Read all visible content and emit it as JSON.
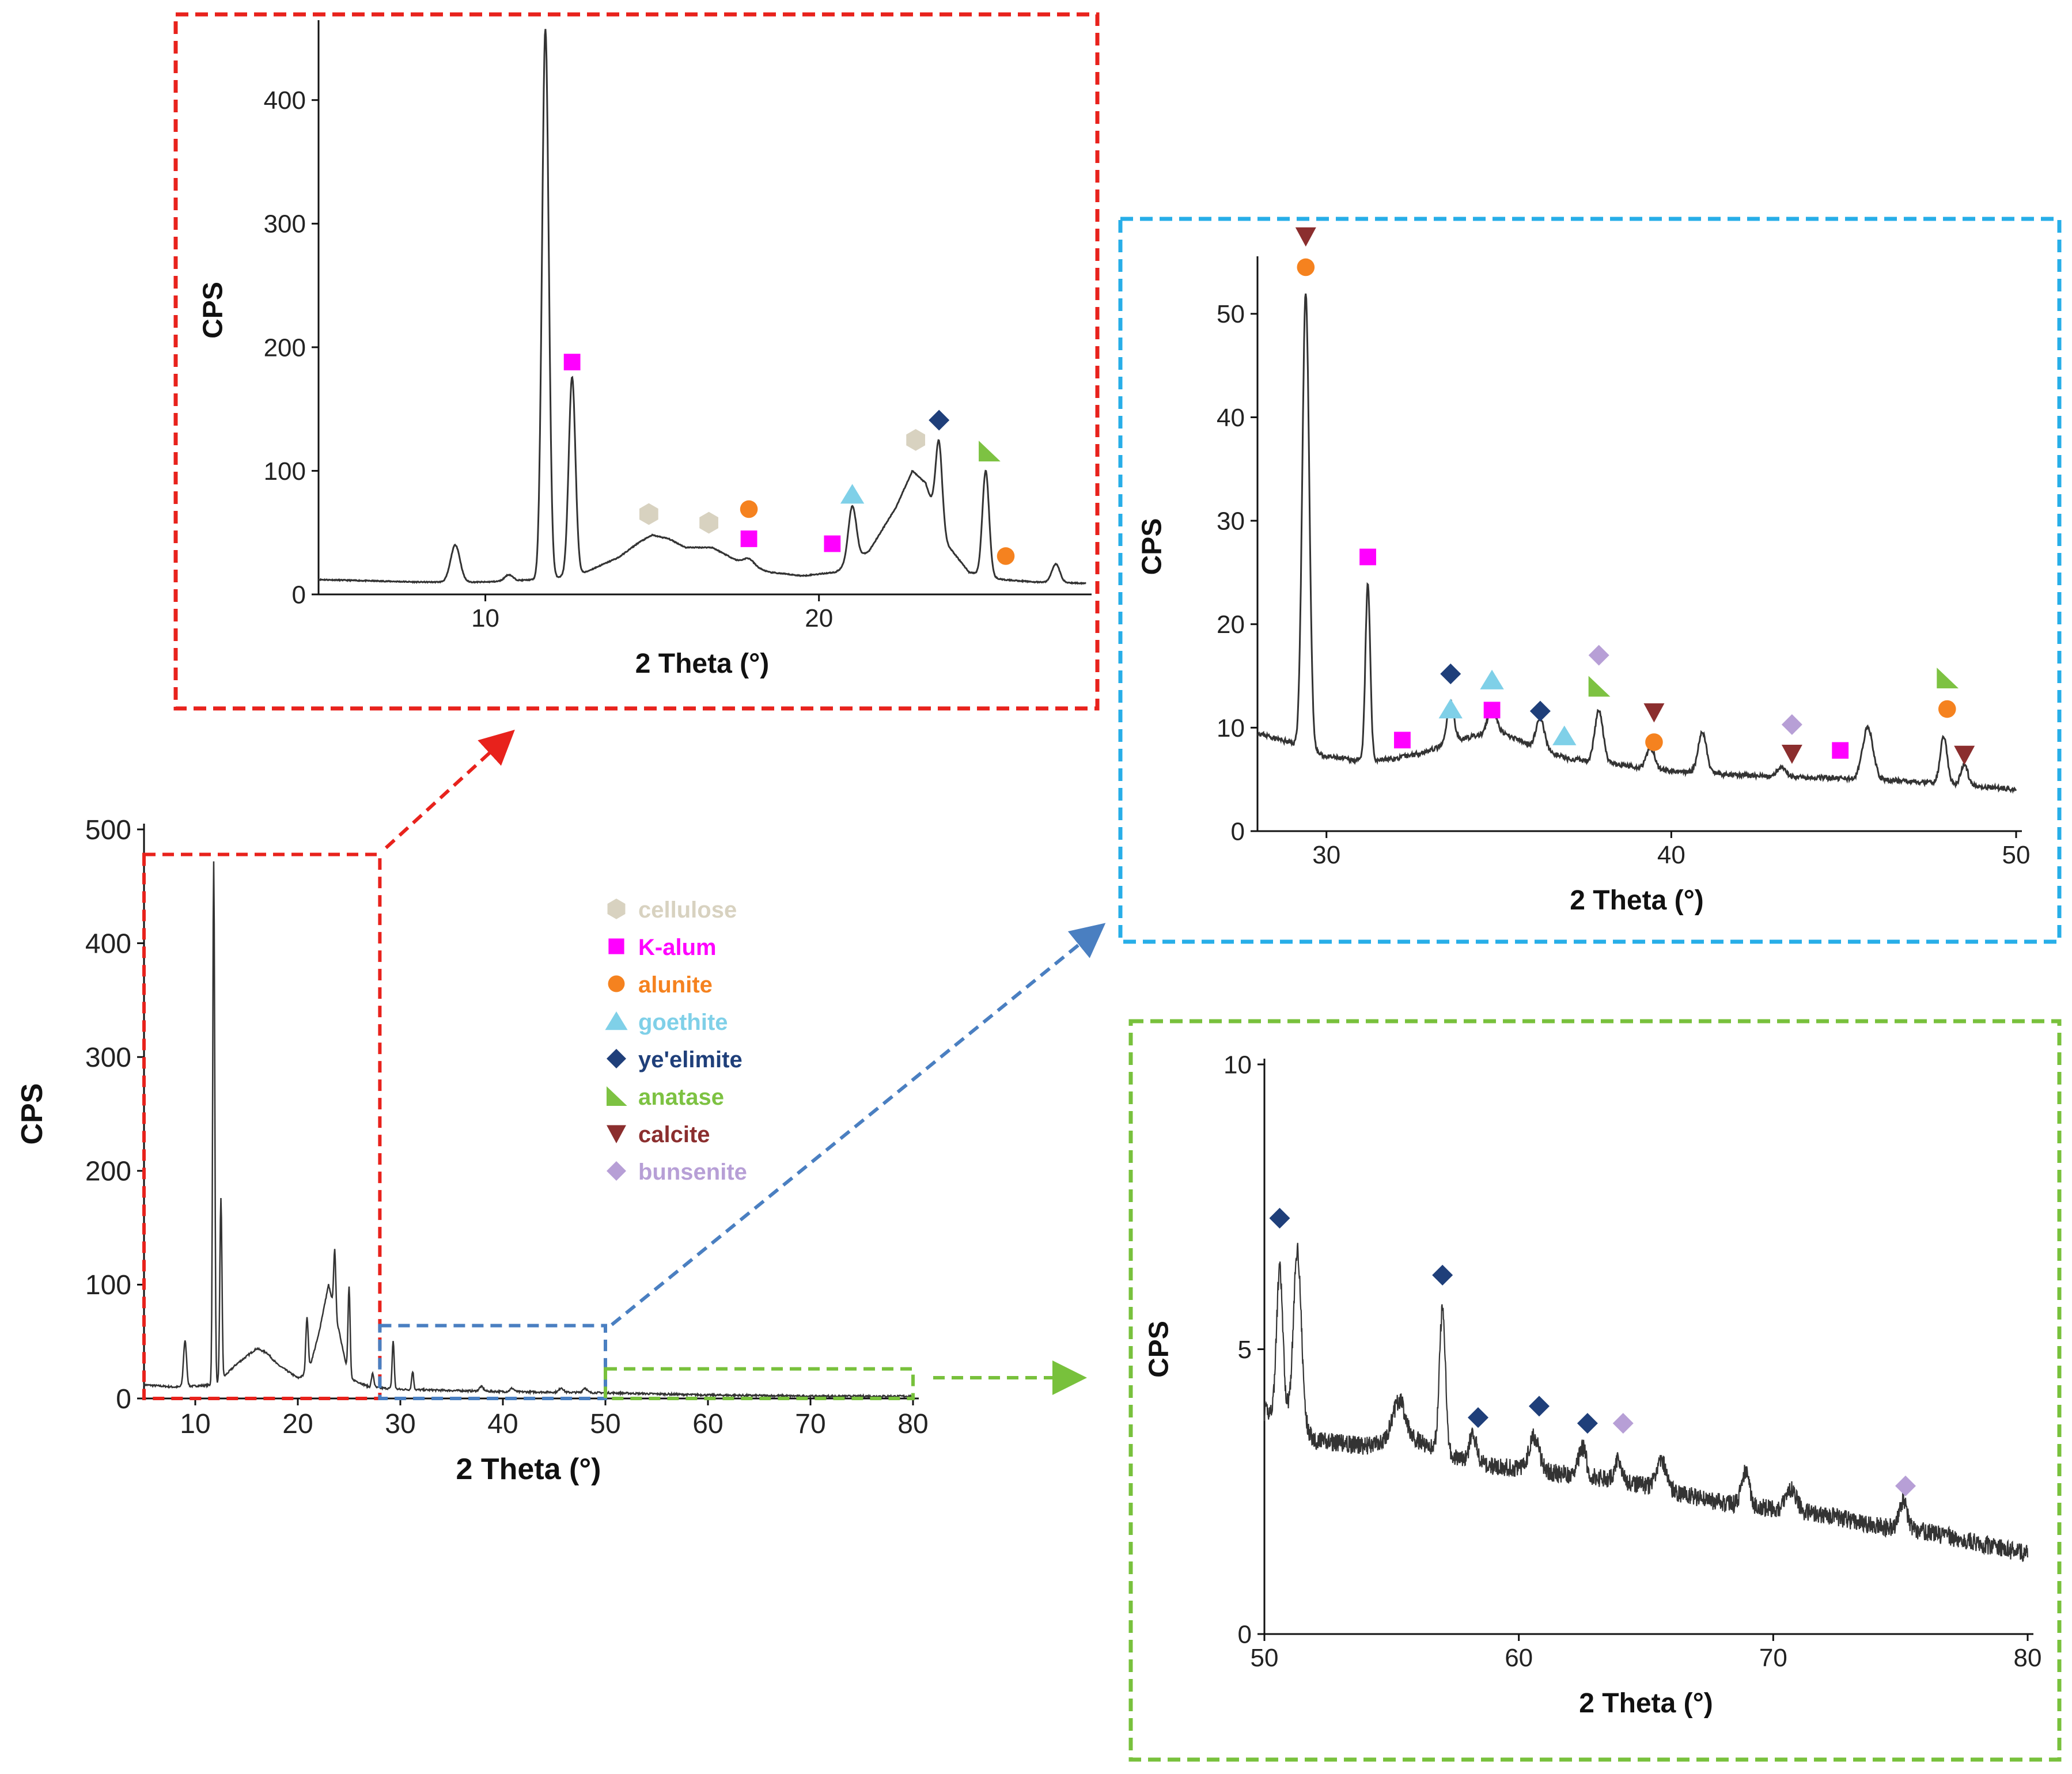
{
  "colors": {
    "cellulose": "#d8d2c0",
    "k_alum": "#ff00ff",
    "alunite": "#f5821f",
    "goethite": "#7fd0e8",
    "yeelimite": "#1f3f7a",
    "anatase": "#7dc242",
    "calcite": "#8b2e2e",
    "bunsenite": "#b79fd6",
    "zoom_red": "#e8221c",
    "zoom_blue": "#27aee8",
    "zoom_green": "#78c13c",
    "zoom_region_blue": "#4a7fc1",
    "trace": "#333333"
  },
  "legend": {
    "entries": [
      {
        "key": "cellulose",
        "label": "cellulose",
        "marker": "hexagon"
      },
      {
        "key": "k_alum",
        "label": "K-alum",
        "marker": "square"
      },
      {
        "key": "alunite",
        "label": "alunite",
        "marker": "circle"
      },
      {
        "key": "goethite",
        "label": "goethite",
        "marker": "triangle-up"
      },
      {
        "key": "yeelimite",
        "label": "ye'elimite",
        "marker": "diamond"
      },
      {
        "key": "anatase",
        "label": "anatase",
        "marker": "right-triangle"
      },
      {
        "key": "calcite",
        "label": "calcite",
        "marker": "triangle-down"
      },
      {
        "key": "bunsenite",
        "label": "bunsenite",
        "marker": "diamond"
      }
    ]
  },
  "chart_data": [
    {
      "id": "main",
      "type": "line",
      "title": "",
      "xlabel": "2 Theta (°)",
      "ylabel": "CPS",
      "xlim": [
        5,
        80
      ],
      "ylim": [
        0,
        500
      ],
      "xticks": [
        10,
        20,
        30,
        40,
        50,
        60,
        70,
        80
      ],
      "yticks": [
        0,
        100,
        200,
        300,
        400,
        500
      ],
      "baseline": [
        [
          5,
          12
        ],
        [
          8,
          10
        ],
        [
          12,
          12
        ],
        [
          14,
          30
        ],
        [
          16,
          44
        ],
        [
          17,
          40
        ],
        [
          18,
          30
        ],
        [
          20,
          18
        ],
        [
          21,
          22
        ],
        [
          22,
          55
        ],
        [
          23,
          100
        ],
        [
          24,
          60
        ],
        [
          25,
          18
        ],
        [
          27,
          10
        ],
        [
          30,
          8
        ],
        [
          35,
          7
        ],
        [
          40,
          6
        ],
        [
          50,
          5
        ],
        [
          60,
          3
        ],
        [
          70,
          2
        ],
        [
          80,
          2
        ]
      ],
      "peaks": [
        [
          9.0,
          40,
          0.15
        ],
        [
          11.8,
          460,
          0.1
        ],
        [
          12.5,
          160,
          0.1
        ],
        [
          20.9,
          50,
          0.12
        ],
        [
          23.6,
          55,
          0.1
        ],
        [
          25.0,
          80,
          0.1
        ],
        [
          27.3,
          12,
          0.12
        ],
        [
          29.3,
          42,
          0.1
        ],
        [
          31.2,
          16,
          0.1
        ],
        [
          37.9,
          4,
          0.2
        ],
        [
          40.9,
          3,
          0.2
        ],
        [
          45.7,
          4,
          0.2
        ],
        [
          48.0,
          4,
          0.2
        ]
      ],
      "zoom_boxes": [
        {
          "zoom": "a",
          "x": [
            5,
            28
          ],
          "y": [
            0,
            478
          ]
        },
        {
          "zoom": "b",
          "x": [
            28,
            50
          ],
          "y": [
            0,
            64
          ]
        },
        {
          "zoom": "c",
          "x": [
            50,
            80
          ],
          "y": [
            0,
            26
          ]
        }
      ]
    },
    {
      "id": "a",
      "type": "line",
      "title": "",
      "xlabel": "2 Theta (°)",
      "ylabel": "CPS",
      "xlim": [
        5,
        28
      ],
      "ylim": [
        0,
        460
      ],
      "xticks": [
        10,
        20
      ],
      "yticks": [
        0,
        100,
        200,
        300,
        400
      ],
      "baseline": [
        [
          5,
          12
        ],
        [
          8,
          10
        ],
        [
          10,
          10
        ],
        [
          11.5,
          12
        ],
        [
          12,
          13
        ],
        [
          13,
          18
        ],
        [
          14,
          30
        ],
        [
          14.6,
          42
        ],
        [
          15,
          48
        ],
        [
          15.5,
          45
        ],
        [
          16,
          38
        ],
        [
          16.8,
          38
        ],
        [
          17.5,
          28
        ],
        [
          18.5,
          18
        ],
        [
          19.5,
          15
        ],
        [
          20.5,
          18
        ],
        [
          21.5,
          35
        ],
        [
          22.3,
          70
        ],
        [
          22.8,
          100
        ],
        [
          23.2,
          90
        ],
        [
          23.7,
          45
        ],
        [
          24.5,
          18
        ],
        [
          25.5,
          12
        ],
        [
          26.5,
          10
        ],
        [
          28,
          9
        ]
      ],
      "peaks": [
        [
          9.1,
          30,
          0.14
        ],
        [
          10.7,
          5,
          0.12
        ],
        [
          11.8,
          445,
          0.1
        ],
        [
          12.6,
          160,
          0.1
        ],
        [
          17.9,
          5,
          0.15
        ],
        [
          21.0,
          45,
          0.12
        ],
        [
          23.6,
          70,
          0.1
        ],
        [
          25.0,
          85,
          0.1
        ],
        [
          27.1,
          15,
          0.12
        ]
      ],
      "annotations": [
        {
          "x": 12.6,
          "y": 188,
          "phase": "k_alum"
        },
        {
          "x": 14.9,
          "y": 65,
          "phase": "cellulose"
        },
        {
          "x": 16.7,
          "y": 58,
          "phase": "cellulose"
        },
        {
          "x": 17.9,
          "y": 69,
          "phase": "alunite"
        },
        {
          "x": 17.9,
          "y": 45,
          "phase": "k_alum"
        },
        {
          "x": 20.4,
          "y": 41,
          "phase": "k_alum"
        },
        {
          "x": 21.0,
          "y": 81,
          "phase": "goethite"
        },
        {
          "x": 22.9,
          "y": 125,
          "phase": "cellulose"
        },
        {
          "x": 23.6,
          "y": 141,
          "phase": "yeelimite"
        },
        {
          "x": 25.1,
          "y": 116,
          "phase": "anatase"
        },
        {
          "x": 25.6,
          "y": 31,
          "phase": "alunite"
        }
      ]
    },
    {
      "id": "b",
      "type": "line",
      "title": "",
      "xlabel": "2 Theta (°)",
      "ylabel": "CPS",
      "xlim": [
        28,
        50
      ],
      "ylim": [
        0,
        55
      ],
      "xticks": [
        30,
        40,
        50
      ],
      "yticks": [
        0,
        10,
        20,
        30,
        40,
        50
      ],
      "baseline": [
        [
          28,
          9.5
        ],
        [
          29,
          8.5
        ],
        [
          30,
          7.2
        ],
        [
          31,
          6.8
        ],
        [
          32,
          7
        ],
        [
          33,
          7.8
        ],
        [
          34,
          9
        ],
        [
          35,
          9.6
        ],
        [
          36,
          8.2
        ],
        [
          37,
          7
        ],
        [
          38,
          6.6
        ],
        [
          39,
          6.2
        ],
        [
          40,
          5.8
        ],
        [
          42,
          5.4
        ],
        [
          44,
          5.2
        ],
        [
          46,
          5
        ],
        [
          48,
          4.6
        ],
        [
          50,
          4
        ]
      ],
      "peaks": [
        [
          29.4,
          44,
          0.1
        ],
        [
          31.2,
          17,
          0.07
        ],
        [
          33.6,
          4,
          0.1
        ],
        [
          34.8,
          2.5,
          0.12
        ],
        [
          36.2,
          3,
          0.12
        ],
        [
          37.9,
          5,
          0.12
        ],
        [
          39.4,
          2,
          0.12
        ],
        [
          40.9,
          4,
          0.12
        ],
        [
          43.2,
          1,
          0.12
        ],
        [
          45.7,
          5,
          0.15
        ],
        [
          47.9,
          4.5,
          0.1
        ],
        [
          48.5,
          2,
          0.1
        ]
      ],
      "annotations": [
        {
          "x": 29.4,
          "y": 57.5,
          "phase": "calcite"
        },
        {
          "x": 29.4,
          "y": 54.5,
          "phase": "alunite"
        },
        {
          "x": 31.2,
          "y": 26.5,
          "phase": "k_alum"
        },
        {
          "x": 32.2,
          "y": 8.8,
          "phase": "k_alum"
        },
        {
          "x": 33.6,
          "y": 15.2,
          "phase": "yeelimite"
        },
        {
          "x": 33.6,
          "y": 11.8,
          "phase": "goethite"
        },
        {
          "x": 34.8,
          "y": 14.6,
          "phase": "goethite"
        },
        {
          "x": 34.8,
          "y": 11.7,
          "phase": "k_alum"
        },
        {
          "x": 36.2,
          "y": 11.6,
          "phase": "yeelimite"
        },
        {
          "x": 36.9,
          "y": 9.2,
          "phase": "goethite"
        },
        {
          "x": 37.9,
          "y": 17.0,
          "phase": "bunsenite"
        },
        {
          "x": 37.9,
          "y": 14.0,
          "phase": "anatase"
        },
        {
          "x": 39.5,
          "y": 11.5,
          "phase": "calcite"
        },
        {
          "x": 39.5,
          "y": 8.6,
          "phase": "alunite"
        },
        {
          "x": 43.5,
          "y": 10.3,
          "phase": "bunsenite"
        },
        {
          "x": 43.5,
          "y": 7.5,
          "phase": "calcite"
        },
        {
          "x": 44.9,
          "y": 7.8,
          "phase": "k_alum"
        },
        {
          "x": 48.0,
          "y": 14.8,
          "phase": "anatase"
        },
        {
          "x": 48.0,
          "y": 11.8,
          "phase": "alunite"
        },
        {
          "x": 48.5,
          "y": 7.4,
          "phase": "calcite"
        }
      ]
    },
    {
      "id": "c",
      "type": "line",
      "title": "",
      "xlabel": "2 Theta (°)",
      "ylabel": "CPS",
      "xlim": [
        50,
        80
      ],
      "ylim": [
        0,
        10
      ],
      "xticks": [
        50,
        60,
        70,
        80
      ],
      "yticks": [
        0,
        5,
        10
      ],
      "baseline": [
        [
          50,
          3.9
        ],
        [
          51,
          3.9
        ],
        [
          52,
          3.4
        ],
        [
          54,
          3.3
        ],
        [
          55,
          3.4
        ],
        [
          56,
          3.4
        ],
        [
          57,
          3.2
        ],
        [
          58,
          3.0
        ],
        [
          60,
          2.9
        ],
        [
          62,
          2.8
        ],
        [
          64,
          2.7
        ],
        [
          66,
          2.5
        ],
        [
          68,
          2.3
        ],
        [
          70,
          2.2
        ],
        [
          72,
          2.1
        ],
        [
          74,
          1.9
        ],
        [
          76,
          1.8
        ],
        [
          78,
          1.6
        ],
        [
          80,
          1.4
        ]
      ],
      "peaks": [
        [
          50.6,
          2.5,
          0.12
        ],
        [
          51.3,
          3.0,
          0.15
        ],
        [
          55.3,
          0.7,
          0.25
        ],
        [
          57.0,
          2.5,
          0.12
        ],
        [
          58.2,
          0.5,
          0.15
        ],
        [
          60.6,
          0.6,
          0.2
        ],
        [
          62.5,
          0.5,
          0.15
        ],
        [
          63.9,
          0.4,
          0.12
        ],
        [
          65.6,
          0.5,
          0.2
        ],
        [
          68.9,
          0.6,
          0.15
        ],
        [
          70.7,
          0.4,
          0.2
        ],
        [
          75.1,
          0.5,
          0.15
        ]
      ],
      "annotations": [
        {
          "x": 50.6,
          "y": 7.3,
          "phase": "yeelimite"
        },
        {
          "x": 57.0,
          "y": 6.3,
          "phase": "yeelimite"
        },
        {
          "x": 58.4,
          "y": 3.8,
          "phase": "yeelimite"
        },
        {
          "x": 60.8,
          "y": 4.0,
          "phase": "yeelimite"
        },
        {
          "x": 62.7,
          "y": 3.7,
          "phase": "yeelimite"
        },
        {
          "x": 64.1,
          "y": 3.7,
          "phase": "bunsenite"
        },
        {
          "x": 75.2,
          "y": 2.6,
          "phase": "bunsenite"
        }
      ]
    }
  ]
}
